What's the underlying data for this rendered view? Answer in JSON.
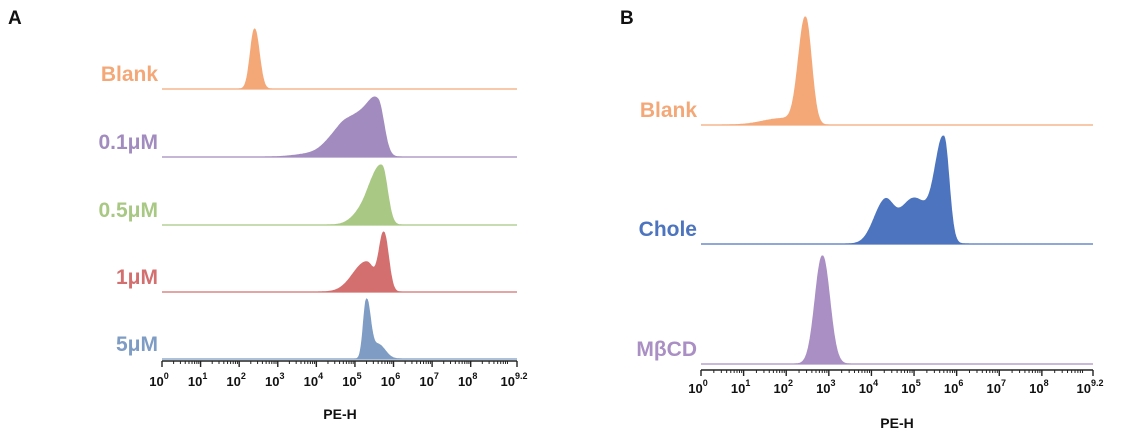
{
  "chart_data": [
    {
      "panel": "A",
      "type": "area",
      "xlabel": "PE-H",
      "x_scale": "log10",
      "xlim": [
        0,
        9.2
      ],
      "ticks": [
        "0",
        "1",
        "2",
        "3",
        "4",
        "5",
        "6",
        "7",
        "8",
        "9.2"
      ],
      "series": [
        {
          "name": "Blank",
          "color": "#F4A878",
          "peaks": [
            {
              "center": 2.4,
              "sigma_left": 0.11,
              "sigma_right": 0.12,
              "height": 1.0
            }
          ]
        },
        {
          "name": "0.1μM",
          "color": "#A28BBE",
          "peaks": [
            {
              "center": 5.1,
              "sigma_left": 0.3,
              "sigma_right": 0.3,
              "height": 0.55
            },
            {
              "center": 5.6,
              "sigma_left": 0.25,
              "sigma_right": 0.15,
              "height": 0.75
            },
            {
              "center": 4.6,
              "sigma_left": 0.35,
              "sigma_right": 0.25,
              "height": 0.35
            },
            {
              "center": 3.8,
              "sigma_left": 0.4,
              "sigma_right": 0.4,
              "height": 0.04
            }
          ]
        },
        {
          "name": "0.5μM",
          "color": "#A8C884",
          "peaks": [
            {
              "center": 5.7,
              "sigma_left": 0.25,
              "sigma_right": 0.14,
              "height": 1.0
            },
            {
              "center": 5.3,
              "sigma_left": 0.3,
              "sigma_right": 0.2,
              "height": 0.3
            }
          ]
        },
        {
          "name": "1μM",
          "color": "#D46F6F",
          "peaks": [
            {
              "center": 5.75,
              "sigma_left": 0.12,
              "sigma_right": 0.12,
              "height": 0.95
            },
            {
              "center": 5.3,
              "sigma_left": 0.35,
              "sigma_right": 0.2,
              "height": 0.5
            }
          ]
        },
        {
          "name": "5μM",
          "color": "#7E9CC4",
          "peaks": [
            {
              "center": 5.3,
              "sigma_left": 0.08,
              "sigma_right": 0.1,
              "height": 1.0
            },
            {
              "center": 5.6,
              "sigma_left": 0.15,
              "sigma_right": 0.18,
              "height": 0.25
            }
          ]
        }
      ]
    },
    {
      "panel": "B",
      "type": "area",
      "xlabel": "PE-H",
      "x_scale": "log10",
      "xlim": [
        0,
        9.2
      ],
      "ticks": [
        "0",
        "1",
        "2",
        "3",
        "4",
        "5",
        "6",
        "7",
        "8",
        "9.2"
      ],
      "series": [
        {
          "name": "Blank",
          "color": "#F4A878",
          "peaks": [
            {
              "center": 2.45,
              "sigma_left": 0.16,
              "sigma_right": 0.14,
              "height": 1.0
            },
            {
              "center": 1.9,
              "sigma_left": 0.45,
              "sigma_right": 0.3,
              "height": 0.06
            }
          ]
        },
        {
          "name": "Chole",
          "color": "#4D74BE",
          "peaks": [
            {
              "center": 5.7,
              "sigma_left": 0.2,
              "sigma_right": 0.12,
              "height": 1.0
            },
            {
              "center": 4.3,
              "sigma_left": 0.25,
              "sigma_right": 0.2,
              "height": 0.38
            },
            {
              "center": 5.0,
              "sigma_left": 0.35,
              "sigma_right": 0.35,
              "height": 0.45
            }
          ]
        },
        {
          "name": "MβCD",
          "color": "#A98FC3",
          "peaks": [
            {
              "center": 2.85,
              "sigma_left": 0.17,
              "sigma_right": 0.17,
              "height": 1.0
            }
          ]
        }
      ]
    }
  ]
}
